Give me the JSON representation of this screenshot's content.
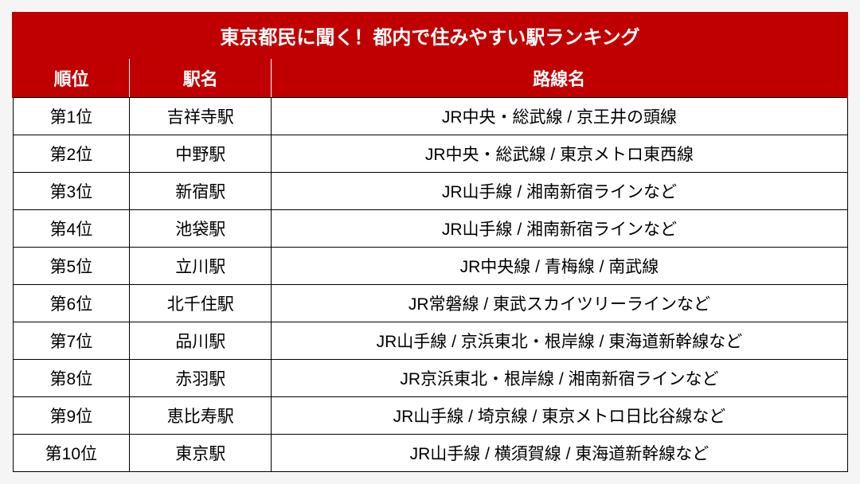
{
  "table": {
    "title": "東京都民に聞く！都内で住みやすい駅ランキング",
    "columns": [
      "順位",
      "駅名",
      "路線名"
    ],
    "column_widths": [
      "14%",
      "17%",
      "69%"
    ],
    "rows": [
      [
        "第1位",
        "吉祥寺駅",
        "JR中央・総武線 / 京王井の頭線"
      ],
      [
        "第2位",
        "中野駅",
        "JR中央・総武線 / 東京メトロ東西線"
      ],
      [
        "第3位",
        "新宿駅",
        "JR山手線 / 湘南新宿ラインなど"
      ],
      [
        "第4位",
        "池袋駅",
        "JR山手線 / 湘南新宿ラインなど"
      ],
      [
        "第5位",
        "立川駅",
        "JR中央線 / 青梅線 / 南武線"
      ],
      [
        "第6位",
        "北千住駅",
        "JR常磐線 / 東武スカイツリーラインなど"
      ],
      [
        "第7位",
        "品川駅",
        "JR山手線 / 京浜東北・根岸線 / 東海道新幹線など"
      ],
      [
        "第8位",
        "赤羽駅",
        "JR京浜東北・根岸線 / 湘南新宿ラインなど"
      ],
      [
        "第9位",
        "恵比寿駅",
        "JR山手線 / 埼京線 / 東京メトロ日比谷線など"
      ],
      [
        "第10位",
        "東京駅",
        "JR山手線 / 横須賀線 / 東海道新幹線など"
      ]
    ],
    "header_bg_color": "#c00000",
    "header_text_color": "#ffffff",
    "cell_bg_color": "#ffffff",
    "cell_text_color": "#000000",
    "border_color": "#000000",
    "title_fontsize": 24,
    "header_fontsize": 22,
    "cell_fontsize": 21
  }
}
